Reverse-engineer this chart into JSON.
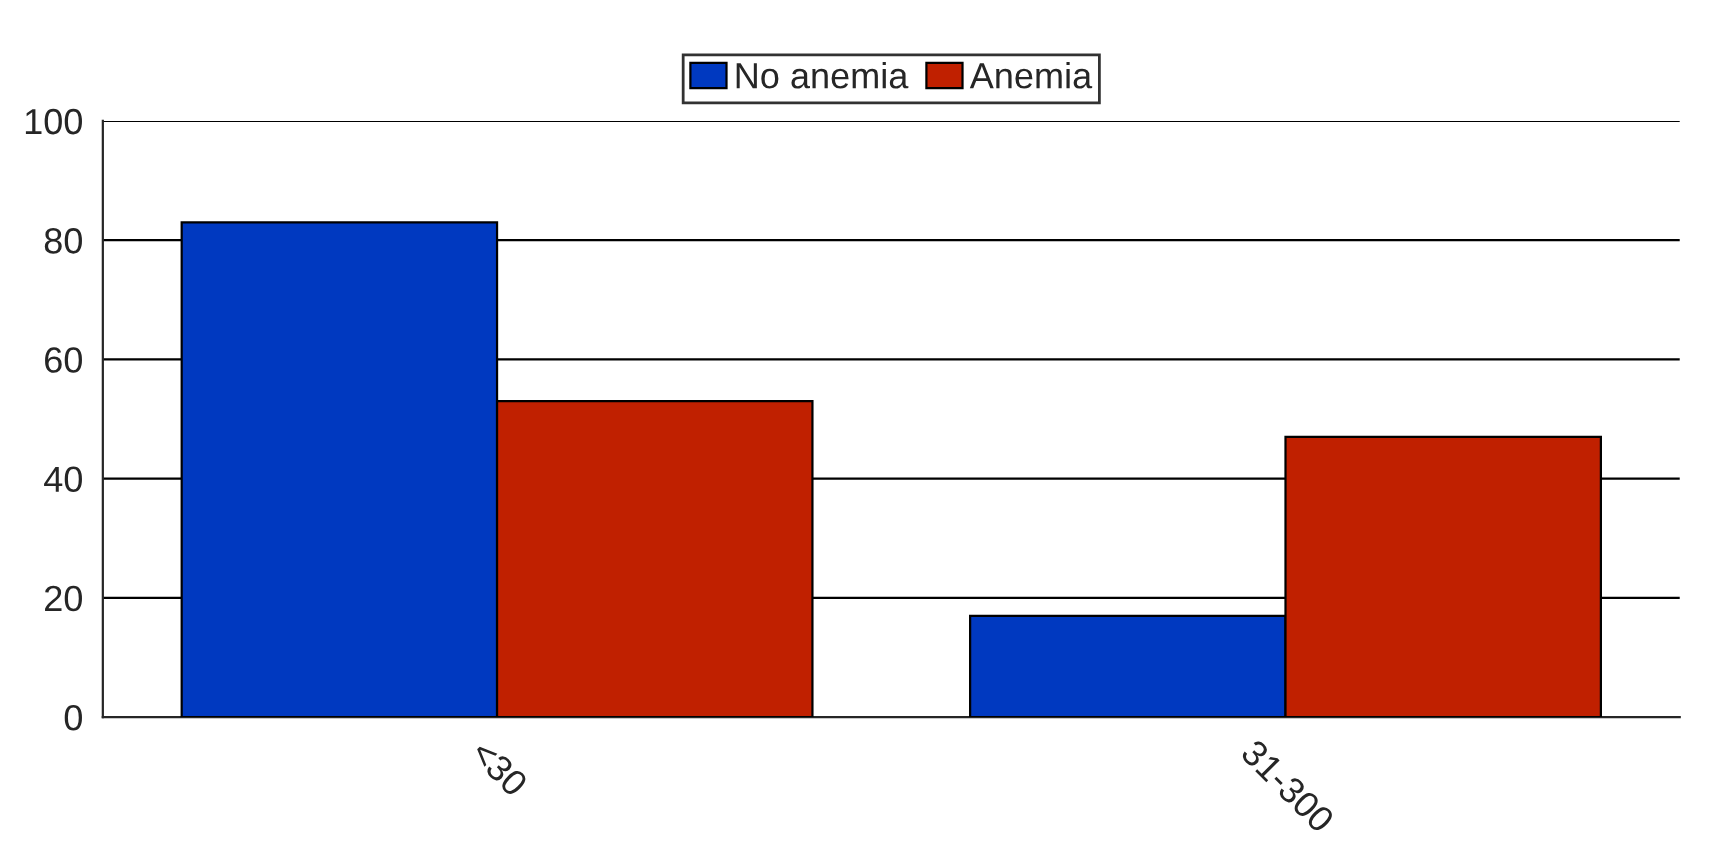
{
  "chart_data": {
    "type": "bar",
    "categories": [
      "<30",
      "31-300"
    ],
    "series": [
      {
        "name": "No anemia",
        "color": "#0039c0",
        "values": [
          83,
          17
        ]
      },
      {
        "name": "Anemia",
        "color": "#c02000",
        "values": [
          53,
          47
        ]
      }
    ],
    "ylim": [
      0,
      100
    ],
    "yticks": [
      0,
      20,
      40,
      60,
      80,
      100
    ],
    "grid": "y",
    "legend": "top"
  }
}
